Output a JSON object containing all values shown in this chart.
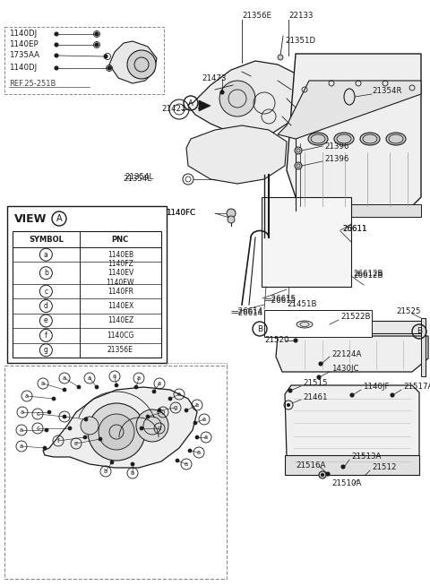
{
  "bg_color": "#ffffff",
  "line_color": "#1a1a1a",
  "table_rows": [
    {
      "symbol": "a",
      "pnc": "1140EB"
    },
    {
      "symbol": "b",
      "pnc": "1140FZ\n1140EV\n1140EW"
    },
    {
      "symbol": "c",
      "pnc": "1140FR"
    },
    {
      "symbol": "d",
      "pnc": "1140EX"
    },
    {
      "symbol": "e",
      "pnc": "1140EZ"
    },
    {
      "symbol": "f",
      "pnc": "1140CG"
    },
    {
      "symbol": "g",
      "pnc": "21356E"
    }
  ]
}
